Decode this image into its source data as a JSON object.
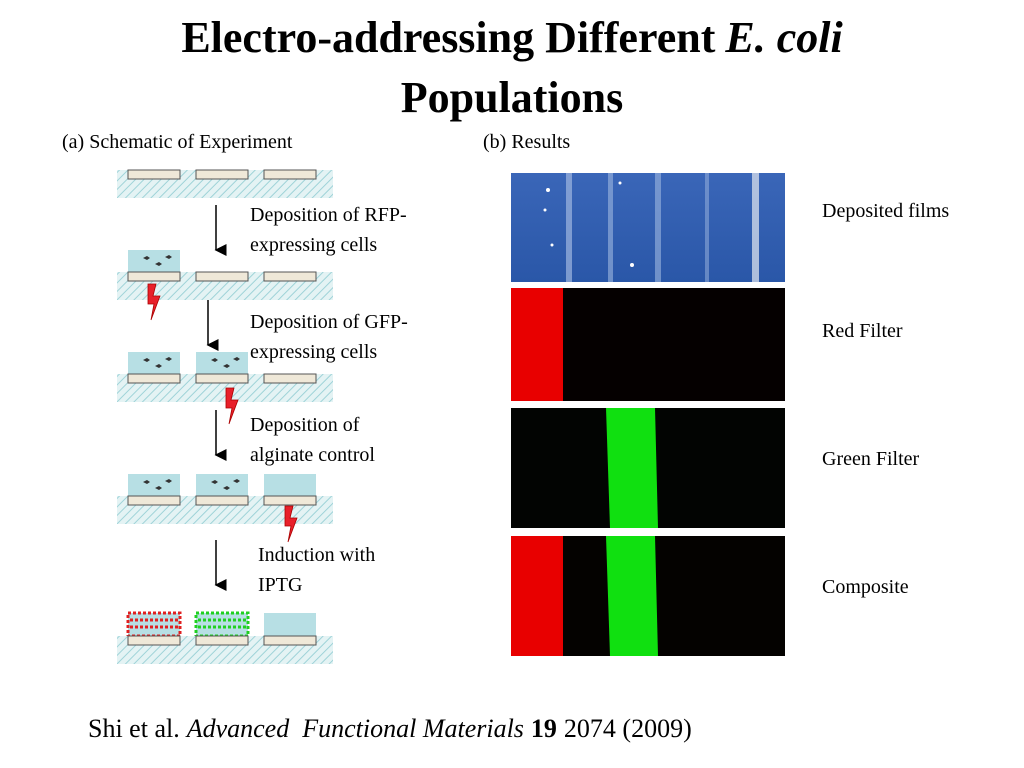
{
  "title": {
    "text": "Electro-addressing Different",
    "italic": "E. coli",
    "line2": "Populations"
  },
  "panel_a": {
    "label": "(a) Schematic of Experiment",
    "steps": [
      {
        "lines": [
          "Deposition of RFP-",
          "expressing cells"
        ]
      },
      {
        "lines": [
          "Deposition of GFP-",
          "expressing cells"
        ]
      },
      {
        "lines": [
          "Deposition of",
          "alginate control"
        ]
      },
      {
        "lines": [
          "Induction with",
          "IPTG"
        ]
      }
    ]
  },
  "panel_b": {
    "label": "(b) Results",
    "rows": [
      "Deposited films",
      "Red Filter",
      "Green Filter",
      "Composite"
    ]
  },
  "citation": {
    "authors": "Shi et al.",
    "journal": "Advanced  Functional Materials",
    "volume": "19",
    "rest": "2074 (2009)"
  }
}
